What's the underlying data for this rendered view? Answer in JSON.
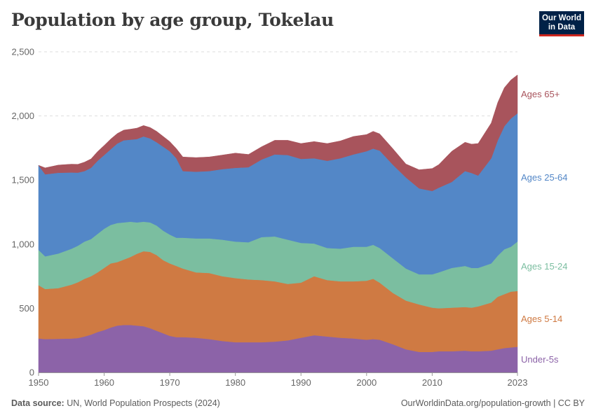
{
  "title": "Population by age group, Tokelau",
  "logo": {
    "line1": "Our World",
    "line2": "in Data"
  },
  "footer": {
    "source_label": "Data source:",
    "source_text": "UN, World Population Prospects (2024)",
    "right_text": "OurWorldinData.org/population-growth | CC BY"
  },
  "chart_data": {
    "type": "area",
    "stacked": true,
    "title": "Population by age group, Tokelau",
    "xlabel": "",
    "ylabel": "",
    "xlim": [
      1950,
      2023
    ],
    "ylim": [
      0,
      2500
    ],
    "x_ticks": [
      {
        "value": 1950,
        "label": "1950"
      },
      {
        "value": 1960,
        "label": "1960"
      },
      {
        "value": 1970,
        "label": "1970"
      },
      {
        "value": 1980,
        "label": "1980"
      },
      {
        "value": 1990,
        "label": "1990"
      },
      {
        "value": 2000,
        "label": "2000"
      },
      {
        "value": 2010,
        "label": "2010"
      },
      {
        "value": 2023,
        "label": "2023"
      }
    ],
    "y_ticks": [
      {
        "value": 0,
        "label": "0"
      },
      {
        "value": 500,
        "label": "500"
      },
      {
        "value": 1000,
        "label": "1,000"
      },
      {
        "value": 1500,
        "label": "1,500"
      },
      {
        "value": 2000,
        "label": "2,000"
      },
      {
        "value": 2500,
        "label": "2,500"
      }
    ],
    "grid": "horizontal dashed",
    "legend": "right, inline labels",
    "x": [
      1950,
      1951,
      1953,
      1955,
      1956,
      1957,
      1958,
      1959,
      1960,
      1961,
      1962,
      1963,
      1964,
      1965,
      1966,
      1967,
      1968,
      1969,
      1970,
      1971,
      1972,
      1974,
      1976,
      1978,
      1980,
      1982,
      1984,
      1986,
      1988,
      1990,
      1992,
      1994,
      1996,
      1998,
      2000,
      2001,
      2002,
      2004,
      2006,
      2008,
      2010,
      2011,
      2013,
      2015,
      2016,
      2017,
      2019,
      2020,
      2021,
      2022,
      2023
    ],
    "series": [
      {
        "name": "Under-5s",
        "color": "#8c63a8",
        "values": [
          265,
          260,
          262,
          264,
          268,
          280,
          295,
          315,
          330,
          350,
          365,
          370,
          370,
          365,
          360,
          345,
          325,
          305,
          285,
          275,
          275,
          270,
          260,
          245,
          235,
          235,
          235,
          240,
          250,
          270,
          290,
          280,
          270,
          265,
          255,
          260,
          255,
          220,
          180,
          160,
          160,
          165,
          165,
          170,
          165,
          165,
          170,
          180,
          190,
          195,
          200
        ]
      },
      {
        "name": "Ages 5-14",
        "color": "#cf7a43",
        "values": [
          415,
          390,
          395,
          420,
          435,
          450,
          455,
          465,
          485,
          500,
          495,
          510,
          530,
          560,
          585,
          595,
          590,
          570,
          565,
          555,
          535,
          510,
          515,
          505,
          500,
          490,
          485,
          470,
          440,
          430,
          460,
          440,
          440,
          445,
          460,
          470,
          445,
          400,
          380,
          370,
          345,
          335,
          340,
          340,
          340,
          350,
          375,
          410,
          420,
          435,
          435
        ]
      },
      {
        "name": "Ages 15-24",
        "color": "#7bbea0",
        "values": [
          275,
          255,
          270,
          280,
          285,
          290,
          290,
          300,
          305,
          300,
          305,
          290,
          275,
          245,
          230,
          230,
          230,
          230,
          225,
          220,
          240,
          265,
          270,
          285,
          285,
          290,
          335,
          350,
          345,
          310,
          255,
          250,
          255,
          270,
          265,
          265,
          270,
          270,
          250,
          235,
          260,
          280,
          310,
          320,
          310,
          300,
          305,
          320,
          350,
          350,
          385
        ]
      },
      {
        "name": "Ages 25-64",
        "color": "#5387c7",
        "values": [
          660,
          640,
          630,
          595,
          570,
          550,
          555,
          570,
          575,
          590,
          620,
          640,
          640,
          650,
          665,
          655,
          650,
          655,
          650,
          620,
          520,
          520,
          525,
          550,
          575,
          585,
          605,
          640,
          660,
          655,
          665,
          680,
          705,
          720,
          745,
          750,
          760,
          730,
          710,
          670,
          650,
          660,
          670,
          740,
          740,
          720,
          820,
          900,
          960,
          1000,
          1000
        ]
      },
      {
        "name": "Ages 65+",
        "color": "#a8545c",
        "values": [
          0,
          50,
          60,
          65,
          65,
          70,
          70,
          72,
          75,
          80,
          78,
          80,
          82,
          85,
          85,
          85,
          85,
          80,
          75,
          75,
          110,
          110,
          110,
          110,
          115,
          100,
          100,
          110,
          115,
          120,
          130,
          135,
          135,
          140,
          130,
          135,
          130,
          125,
          105,
          145,
          175,
          180,
          240,
          225,
          225,
          250,
          275,
          295,
          300,
          300,
          300
        ]
      }
    ]
  }
}
